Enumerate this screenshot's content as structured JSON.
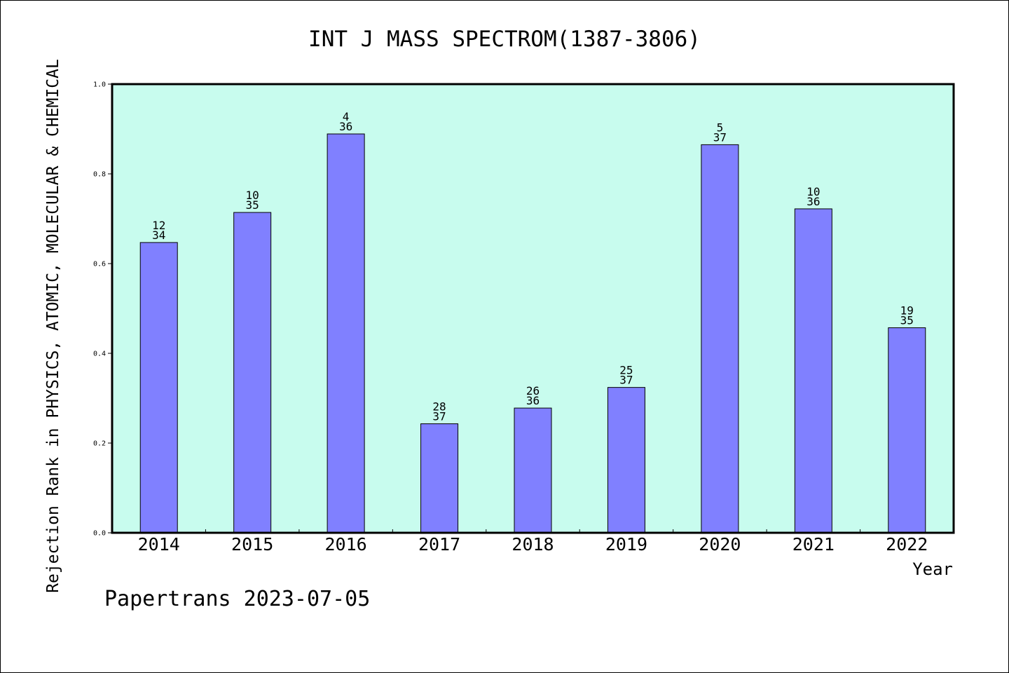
{
  "colors": {
    "plot_background": "#c8fcee",
    "bar_fill": "#8080ff",
    "bar_stroke": "#000000",
    "axis": "#000000"
  },
  "footer": "Papertrans 2023-07-05",
  "chart_data": {
    "type": "bar",
    "title": "INT J MASS SPECTROM(1387-3806)",
    "xlabel": "Year",
    "ylabel": "Rejection Rank in PHYSICS, ATOMIC, MOLECULAR & CHEMICAL",
    "ylim": [
      0,
      1.0
    ],
    "yticks": [
      "0.0",
      "0.2",
      "0.4",
      "0.6",
      "0.8",
      "1.0"
    ],
    "grid": false,
    "categories": [
      "2014",
      "2015",
      "2016",
      "2017",
      "2018",
      "2019",
      "2020",
      "2021",
      "2022"
    ],
    "values": [
      0.647,
      0.714,
      0.889,
      0.243,
      0.278,
      0.324,
      0.865,
      0.722,
      0.457
    ],
    "annotations": [
      {
        "rank": "12",
        "total": "34"
      },
      {
        "rank": "10",
        "total": "35"
      },
      {
        "rank": "4",
        "total": "36"
      },
      {
        "rank": "28",
        "total": "37"
      },
      {
        "rank": "26",
        "total": "36"
      },
      {
        "rank": "25",
        "total": "37"
      },
      {
        "rank": "5",
        "total": "37"
      },
      {
        "rank": "10",
        "total": "36"
      },
      {
        "rank": "19",
        "total": "35"
      }
    ]
  }
}
